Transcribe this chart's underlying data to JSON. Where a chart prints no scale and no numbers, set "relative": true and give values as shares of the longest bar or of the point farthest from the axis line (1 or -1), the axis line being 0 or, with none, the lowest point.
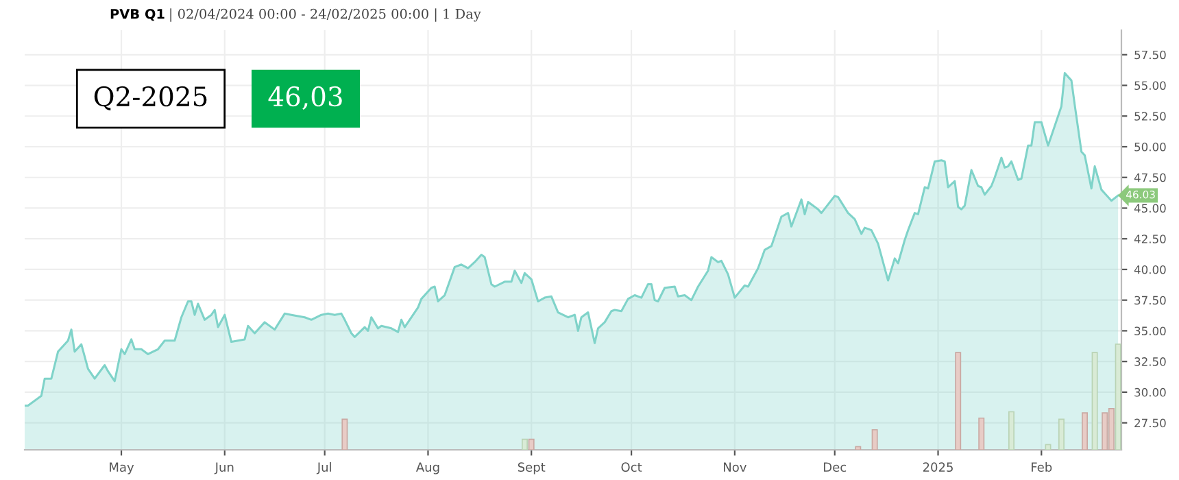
{
  "chart_data": [
    {
      "type": "area",
      "title": "PVB Q1",
      "subtitle": "| 02/04/2024 00:00 - 24/02/2025 00:00 | 1 Day",
      "annotations": [
        "Q2-2025",
        "46,03",
        {
          "text": "46.03",
          "x": "2025-02-24",
          "y": 46.03
        }
      ],
      "x": [
        "2024-04-02",
        "2024-04-03",
        "2024-04-07",
        "2024-04-08",
        "2024-04-10",
        "2024-04-12",
        "2024-04-15",
        "2024-04-16",
        "2024-04-17",
        "2024-04-19",
        "2024-04-21",
        "2024-04-23",
        "2024-04-26",
        "2024-04-27",
        "2024-04-29",
        "2024-05-01",
        "2024-05-02",
        "2024-05-04",
        "2024-05-05",
        "2024-05-07",
        "2024-05-09",
        "2024-05-12",
        "2024-05-14",
        "2024-05-17",
        "2024-05-19",
        "2024-05-21",
        "2024-05-22",
        "2024-05-23",
        "2024-05-24",
        "2024-05-26",
        "2024-05-28",
        "2024-05-29",
        "2024-05-30",
        "2024-06-01",
        "2024-06-03",
        "2024-06-07",
        "2024-06-08",
        "2024-06-10",
        "2024-06-13",
        "2024-06-16",
        "2024-06-19",
        "2024-06-21",
        "2024-06-25",
        "2024-06-27",
        "2024-06-30",
        "2024-07-02",
        "2024-07-04",
        "2024-07-06",
        "2024-07-07",
        "2024-07-09",
        "2024-07-10",
        "2024-07-13",
        "2024-07-14",
        "2024-07-15",
        "2024-07-17",
        "2024-07-18",
        "2024-07-21",
        "2024-07-23",
        "2024-07-24",
        "2024-07-25",
        "2024-07-29",
        "2024-07-30",
        "2024-08-02",
        "2024-08-03",
        "2024-08-04",
        "2024-08-06",
        "2024-08-09",
        "2024-08-11",
        "2024-08-13",
        "2024-08-15",
        "2024-08-17",
        "2024-08-18",
        "2024-08-20",
        "2024-08-21",
        "2024-08-24",
        "2024-08-26",
        "2024-08-27",
        "2024-08-29",
        "2024-08-30",
        "2024-09-01",
        "2024-09-03",
        "2024-09-05",
        "2024-09-07",
        "2024-09-09",
        "2024-09-12",
        "2024-09-14",
        "2024-09-15",
        "2024-09-16",
        "2024-09-18",
        "2024-09-20",
        "2024-09-21",
        "2024-09-23",
        "2024-09-25",
        "2024-09-26",
        "2024-09-28",
        "2024-09-30",
        "2024-10-02",
        "2024-10-04",
        "2024-10-06",
        "2024-10-07",
        "2024-10-08",
        "2024-10-09",
        "2024-10-11",
        "2024-10-14",
        "2024-10-15",
        "2024-10-17",
        "2024-10-19",
        "2024-10-21",
        "2024-10-24",
        "2024-10-25",
        "2024-10-27",
        "2024-10-28",
        "2024-10-30",
        "2024-11-01",
        "2024-11-04",
        "2024-11-05",
        "2024-11-08",
        "2024-11-10",
        "2024-11-12",
        "2024-11-15",
        "2024-11-17",
        "2024-11-18",
        "2024-11-21",
        "2024-11-22",
        "2024-11-23",
        "2024-11-26",
        "2024-11-27",
        "2024-12-01",
        "2024-12-02",
        "2024-12-05",
        "2024-12-07",
        "2024-12-09",
        "2024-12-10",
        "2024-12-12",
        "2024-12-14",
        "2024-12-17",
        "2024-12-19",
        "2024-12-20",
        "2024-12-22",
        "2024-12-23",
        "2024-12-25",
        "2024-12-26",
        "2024-12-28",
        "2024-12-29",
        "2024-12-31",
        "2025-01-02",
        "2025-01-03",
        "2025-01-04",
        "2025-01-06",
        "2025-01-07",
        "2025-01-08",
        "2025-01-09",
        "2025-01-11",
        "2025-01-13",
        "2025-01-14",
        "2025-01-15",
        "2025-01-17",
        "2025-01-18",
        "2025-01-20",
        "2025-01-21",
        "2025-01-22",
        "2025-01-23",
        "2025-01-25",
        "2025-01-26",
        "2025-01-28",
        "2025-01-29",
        "2025-01-30",
        "2025-02-01",
        "2025-02-03",
        "2025-02-04",
        "2025-02-07",
        "2025-02-08",
        "2025-02-10",
        "2025-02-11",
        "2025-02-13",
        "2025-02-14",
        "2025-02-16",
        "2025-02-17",
        "2025-02-19",
        "2025-02-20",
        "2025-02-22",
        "2025-02-24"
      ],
      "series": [
        {
          "color": "#7fd3c9",
          "values": [
            28.9,
            28.9,
            29.7,
            31.1,
            31.1,
            33.3,
            34.2,
            35.1,
            33.3,
            33.9,
            31.9,
            31.1,
            32.2,
            31.7,
            30.9,
            33.5,
            33.1,
            34.3,
            33.5,
            33.5,
            33.1,
            33.5,
            34.2,
            34.2,
            36.1,
            37.4,
            37.4,
            36.3,
            37.2,
            35.9,
            36.3,
            36.7,
            35.3,
            36.3,
            34.1,
            34.3,
            35.4,
            34.8,
            35.7,
            35.1,
            36.4,
            36.3,
            36.1,
            35.9,
            36.3,
            36.4,
            36.3,
            36.4,
            35.9,
            34.8,
            34.5,
            35.3,
            35.0,
            36.1,
            35.2,
            35.4,
            35.2,
            34.9,
            35.9,
            35.3,
            36.9,
            37.6,
            38.5,
            38.6,
            37.4,
            37.9,
            40.2,
            40.4,
            40.1,
            40.6,
            41.2,
            41.0,
            38.8,
            38.6,
            39.0,
            39.0,
            39.9,
            38.9,
            39.7,
            39.2,
            37.4,
            37.7,
            37.8,
            36.5,
            36.1,
            36.3,
            35.0,
            36.1,
            36.5,
            34.0,
            35.2,
            35.7,
            36.6,
            36.7,
            36.6,
            37.6,
            37.9,
            37.7,
            38.8,
            38.8,
            37.5,
            37.4,
            38.5,
            38.6,
            37.8,
            37.9,
            37.5,
            38.6,
            39.9,
            41.0,
            40.6,
            40.7,
            39.6,
            37.7,
            38.7,
            38.6,
            40.1,
            41.6,
            41.9,
            44.3,
            44.6,
            43.5,
            45.7,
            44.5,
            45.5,
            44.9,
            44.6,
            46.0,
            45.9,
            44.6,
            44.1,
            42.9,
            43.4,
            43.2,
            42.1,
            39.1,
            40.9,
            40.5,
            42.4,
            43.2,
            44.6,
            44.5,
            46.7,
            46.6,
            48.8,
            48.9,
            48.8,
            46.7,
            47.2,
            45.1,
            44.9,
            45.2,
            48.1,
            46.8,
            46.7,
            46.1,
            46.8,
            47.5,
            49.1,
            48.3,
            48.4,
            48.8,
            47.3,
            47.4,
            50.1,
            50.1,
            52.0,
            52.0,
            50.1,
            50.9,
            53.3,
            56.0,
            55.4,
            53.4,
            49.6,
            49.3,
            46.6,
            48.4,
            46.5,
            46.2,
            45.6,
            46.03
          ]
        }
      ],
      "xlim": [
        "2024-04-02",
        "2025-02-25"
      ],
      "xticks": [
        {
          "value": "2024-05-01",
          "label": "May"
        },
        {
          "value": "2024-06-01",
          "label": "Jun"
        },
        {
          "value": "2024-07-01",
          "label": "Jul"
        },
        {
          "value": "2024-08-01",
          "label": "Aug"
        },
        {
          "value": "2024-09-01",
          "label": "Sept"
        },
        {
          "value": "2024-10-01",
          "label": "Oct"
        },
        {
          "value": "2024-11-01",
          "label": "Nov"
        },
        {
          "value": "2024-12-01",
          "label": "Dec"
        },
        {
          "value": "2025-01-01",
          "label": "2025"
        },
        {
          "value": "2025-02-01",
          "label": "Feb"
        }
      ],
      "ylim": [
        25.3,
        59.5
      ],
      "yticks": [
        {
          "value": 27.5,
          "label": "27.50"
        },
        {
          "value": 30,
          "label": "30.00"
        },
        {
          "value": 32.5,
          "label": "32.50"
        },
        {
          "value": 35,
          "label": "35.00"
        },
        {
          "value": 37.5,
          "label": "37.50"
        },
        {
          "value": 40,
          "label": "40.00"
        },
        {
          "value": 42.5,
          "label": "42.50"
        },
        {
          "value": 45,
          "label": "45.00"
        },
        {
          "value": 47.5,
          "label": "47.50"
        },
        {
          "value": 50,
          "label": "50.00"
        },
        {
          "value": 52.5,
          "label": "52.50"
        },
        {
          "value": 55,
          "label": "55.00"
        },
        {
          "value": 57.5,
          "label": "57.50"
        }
      ],
      "grid": true
    },
    {
      "type": "bar",
      "relative": true,
      "xlim": [
        "2024-04-02",
        "2025-02-25"
      ],
      "x": [
        "2024-07-07",
        "2024-08-30",
        "2024-09-01",
        "2024-12-08",
        "2024-12-13",
        "2025-01-07",
        "2025-01-14",
        "2025-01-23",
        "2025-02-03",
        "2025-02-07",
        "2025-02-14",
        "2025-02-17",
        "2025-02-20",
        "2025-02-22",
        "2025-02-24"
      ],
      "values": [
        0.29,
        0.1,
        0.1,
        0.03,
        0.19,
        0.92,
        0.3,
        0.36,
        0.05,
        0.29,
        0.35,
        0.92,
        0.35,
        0.39,
        1
      ],
      "colors": [
        "#e8ccc6",
        "#d9ebd6",
        "#e8ccc6",
        "#e8ccc6",
        "#e8ccc6",
        "#e8ccc6",
        "#e8ccc6",
        "#d9ebd6",
        "#d9ebd6",
        "#d9ebd6",
        "#e8ccc6",
        "#d9ebd6",
        "#e8ccc6",
        "#e8ccc6",
        "#d9ebd6"
      ]
    }
  ]
}
